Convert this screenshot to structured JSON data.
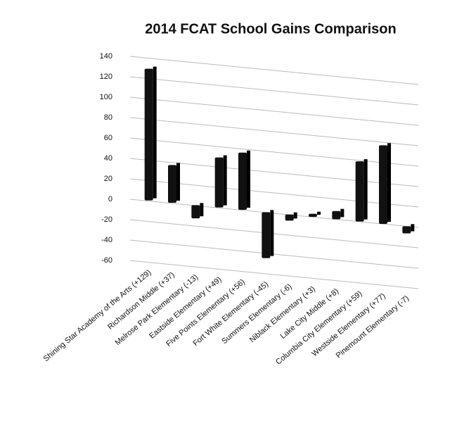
{
  "chart_data": {
    "type": "bar3d",
    "title": "2014 FCAT School Gains Comparison",
    "categories": [
      "Shining Star Academy of the Arts (+129)",
      "Richardson Middle (+37)",
      "Melrose Park Elementary (-13)",
      "Eastside Elementary (+49)",
      "Five Points Elementary (+56)",
      "Fort White Elementary (-45)",
      "Summers Elementary (-6)",
      "Niblack Elementary (+3)",
      "Lake City Middle (+8)",
      "Columbia City Elementary (+59)",
      "Westside Elementary (+77)",
      "Pinemount Elementary (-7)"
    ],
    "values": [
      129,
      37,
      -13,
      49,
      56,
      -45,
      -6,
      3,
      8,
      59,
      77,
      -7
    ],
    "color": "#111111",
    "ylim": [
      -60,
      140
    ],
    "yticks": [
      -60,
      -40,
      -20,
      0,
      20,
      40,
      60,
      80,
      100,
      120,
      140
    ],
    "grid": true
  }
}
